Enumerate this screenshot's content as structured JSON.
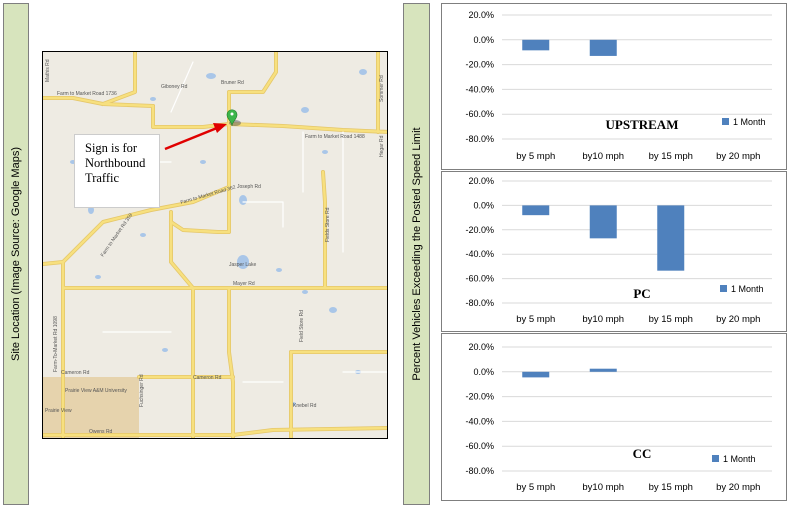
{
  "labels": {
    "site_location": "Site Location (Image Source: Google Maps)",
    "y_axis": "Percent Vehicles Exceeding the Posted Speed Limit"
  },
  "map": {
    "callout_lines": [
      "Sign is for",
      "Northbound",
      "Traffic"
    ],
    "road_labels": {
      "fm1736": "Farm to Market Road 1736",
      "gibonley": "Giboney Rd",
      "bruner": "Bruner Rd",
      "fm1488": "Farm to Market Road 1488",
      "joseph": "Joseph Rd",
      "fm362": "Farm to Market Road 362",
      "jasper_lake": "Jasper Lake",
      "mayer": "Mayer Rd",
      "cameron1": "Cameron Rd",
      "cameron2": "Cameron Rd",
      "prairie_view_am": "Prairie View A&M University",
      "prairie_view": "Prairie View",
      "owens": "Owens Rd",
      "knebel": "Knebel Rd",
      "fields_store1": "Fields Store Rd",
      "fields_store2": "Field Store Rd",
      "fm1098": "Farm-To-Market Rd 1098",
      "fm359": "Farm to Market Rd 359",
      "hegar": "Hegar Rd",
      "sommer": "Sommer Rd",
      "mathis": "Mathis Rd",
      "fuchsinger": "Fuchsinger Rd"
    },
    "colors": {
      "road": "#f7e07f",
      "road_outline": "#e5c76a",
      "water": "#a9c6e8",
      "campus": "#e6d3ad",
      "arrow": "#e00000",
      "marker": "#3bb54a"
    }
  },
  "chart_data": [
    {
      "type": "bar",
      "title": "UPSTREAM",
      "categories": [
        "by 5 mph",
        "by10 mph",
        "by 15 mph",
        "by 20 mph"
      ],
      "series": [
        {
          "name": "1 Month",
          "values": [
            -8.5,
            -13.0,
            0,
            0
          ]
        }
      ],
      "ylim": [
        -80,
        20
      ],
      "yticks": [
        "20.0%",
        "0.0%",
        "-20.0%",
        "-40.0%",
        "-60.0%",
        "-80.0%"
      ],
      "grid": true,
      "legend": "right",
      "color": "#4f81bd"
    },
    {
      "type": "bar",
      "title": "PC",
      "categories": [
        "by 5 mph",
        "by10 mph",
        "by 15 mph",
        "by 20 mph"
      ],
      "series": [
        {
          "name": "1 Month",
          "values": [
            -8.0,
            -27.0,
            -53.5,
            0
          ]
        }
      ],
      "ylim": [
        -80,
        20
      ],
      "yticks": [
        "20.0%",
        "0.0%",
        "-20.0%",
        "-40.0%",
        "-60.0%",
        "-80.0%"
      ],
      "grid": true,
      "legend": "right",
      "color": "#4f81bd"
    },
    {
      "type": "bar",
      "title": "CC",
      "categories": [
        "by 5 mph",
        "by10 mph",
        "by 15 mph",
        "by 20 mph"
      ],
      "series": [
        {
          "name": "1 Month",
          "values": [
            -4.5,
            2.5,
            0,
            0
          ]
        }
      ],
      "ylim": [
        -80,
        20
      ],
      "yticks": [
        "20.0%",
        "0.0%",
        "-20.0%",
        "-40.0%",
        "-60.0%",
        "-80.0%"
      ],
      "grid": true,
      "legend": "right",
      "color": "#4f81bd"
    }
  ]
}
